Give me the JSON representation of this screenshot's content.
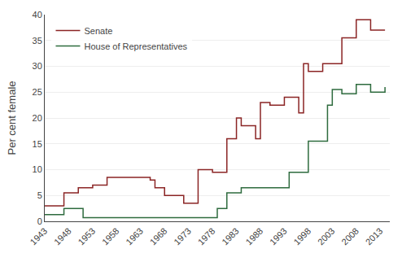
{
  "chart_data": {
    "type": "step",
    "ylabel": "Per cent female",
    "series": [
      {
        "name": "Senate",
        "color": "#8B2525",
        "x": [
          1943,
          1945,
          1947,
          1950,
          1951,
          1953,
          1955,
          1956,
          1959,
          1962,
          1965,
          1966,
          1968,
          1971,
          1972,
          1974,
          1975,
          1977,
          1978,
          1981,
          1983,
          1984,
          1987,
          1988,
          1990,
          1993,
          1996,
          1997,
          1998,
          2001,
          2002,
          2005,
          2008,
          2011,
          2014
        ],
        "values": [
          3.0,
          3.0,
          5.5,
          6.5,
          6.5,
          7.0,
          7.0,
          8.5,
          8.5,
          8.5,
          8.0,
          6.5,
          5.0,
          5.0,
          3.5,
          3.5,
          10.0,
          10.0,
          9.5,
          16.0,
          20.0,
          18.5,
          16.0,
          23.0,
          22.5,
          24.0,
          21.0,
          30.5,
          29.0,
          30.5,
          30.5,
          35.5,
          39.0,
          37.0,
          37.0
        ]
      },
      {
        "name": "House of Representatives",
        "color": "#2E6B3E",
        "x": [
          1943,
          1944,
          1947,
          1951,
          1979,
          1981,
          1984,
          1987,
          1994,
          1996,
          1998,
          2002,
          2003,
          2005,
          2008,
          2010,
          2011,
          2014
        ],
        "values": [
          1.3,
          1.3,
          2.5,
          0.7,
          2.5,
          5.5,
          6.5,
          6.5,
          9.5,
          9.5,
          15.5,
          22.5,
          25.5,
          24.7,
          26.5,
          26.5,
          25.0,
          26.0
        ]
      }
    ],
    "xlim": [
      1943,
      2015
    ],
    "ylim": [
      0,
      40
    ],
    "xticks": [
      1943,
      1948,
      1953,
      1958,
      1963,
      1968,
      1973,
      1978,
      1983,
      1988,
      1993,
      1998,
      2003,
      2008,
      2013
    ],
    "yticks": [
      0,
      5,
      10,
      15,
      20,
      25,
      30,
      35,
      40
    ],
    "grid": "y",
    "legend": "upper left"
  }
}
